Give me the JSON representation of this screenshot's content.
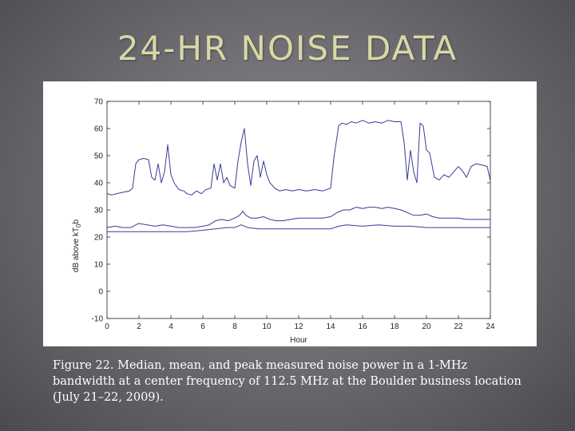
{
  "slide": {
    "title": "24-HR NOISE DATA",
    "caption": "Figure 22. Median, mean, and peak measured noise power in a 1-MHz bandwidth at a center frequency of 112.5 MHz at the Boulder business location (July 21–22, 2009)."
  },
  "colors": {
    "series_line": "#3a3a9a",
    "axis": "#222222",
    "title": "#d9d7a6"
  },
  "chart_data": {
    "type": "line",
    "xlabel": "Hour",
    "ylabel_main": "dB above kT",
    "ylabel_sub": "0",
    "ylabel_end": "b",
    "xlim": [
      0,
      24
    ],
    "ylim": [
      -10,
      70
    ],
    "xticks": [
      0,
      2,
      4,
      6,
      8,
      10,
      12,
      14,
      16,
      18,
      20,
      22,
      24
    ],
    "yticks": [
      -10,
      0,
      10,
      20,
      30,
      40,
      50,
      60,
      70
    ],
    "grid": false,
    "series": [
      {
        "role": "peak",
        "points": [
          [
            0,
            36
          ],
          [
            0.3,
            35.5
          ],
          [
            0.6,
            36
          ],
          [
            1,
            36.5
          ],
          [
            1.4,
            37
          ],
          [
            1.6,
            38
          ],
          [
            1.8,
            47
          ],
          [
            2,
            48.5
          ],
          [
            2.3,
            49
          ],
          [
            2.6,
            48.5
          ],
          [
            2.8,
            42
          ],
          [
            3,
            41
          ],
          [
            3.2,
            47
          ],
          [
            3.4,
            40
          ],
          [
            3.6,
            44
          ],
          [
            3.8,
            54
          ],
          [
            4,
            43
          ],
          [
            4.2,
            40
          ],
          [
            4.5,
            37.5
          ],
          [
            4.8,
            37
          ],
          [
            5,
            36
          ],
          [
            5.3,
            35.5
          ],
          [
            5.6,
            37
          ],
          [
            5.9,
            36
          ],
          [
            6.2,
            37.5
          ],
          [
            6.5,
            38
          ],
          [
            6.7,
            47
          ],
          [
            6.9,
            41
          ],
          [
            7.1,
            47
          ],
          [
            7.3,
            40
          ],
          [
            7.5,
            42
          ],
          [
            7.7,
            39
          ],
          [
            8,
            38
          ],
          [
            8.2,
            48
          ],
          [
            8.4,
            55
          ],
          [
            8.6,
            60
          ],
          [
            8.8,
            47
          ],
          [
            9,
            39
          ],
          [
            9.2,
            48
          ],
          [
            9.4,
            50
          ],
          [
            9.6,
            42
          ],
          [
            9.8,
            48
          ],
          [
            10,
            43
          ],
          [
            10.2,
            40
          ],
          [
            10.5,
            38
          ],
          [
            10.8,
            37
          ],
          [
            11.2,
            37.5
          ],
          [
            11.6,
            37
          ],
          [
            12,
            37.5
          ],
          [
            12.5,
            37
          ],
          [
            13,
            37.5
          ],
          [
            13.5,
            37
          ],
          [
            14,
            38
          ],
          [
            14.2,
            49
          ],
          [
            14.5,
            61
          ],
          [
            14.7,
            62
          ],
          [
            15,
            61.5
          ],
          [
            15.3,
            62.5
          ],
          [
            15.6,
            62
          ],
          [
            16,
            63
          ],
          [
            16.4,
            62
          ],
          [
            16.8,
            62.5
          ],
          [
            17.2,
            62
          ],
          [
            17.6,
            63
          ],
          [
            18,
            62.5
          ],
          [
            18.4,
            62.5
          ],
          [
            18.6,
            55
          ],
          [
            18.8,
            41
          ],
          [
            19,
            52
          ],
          [
            19.2,
            44
          ],
          [
            19.4,
            40
          ],
          [
            19.6,
            62
          ],
          [
            19.8,
            61
          ],
          [
            20,
            52
          ],
          [
            20.2,
            51
          ],
          [
            20.5,
            42
          ],
          [
            20.8,
            41
          ],
          [
            21.1,
            43
          ],
          [
            21.4,
            42
          ],
          [
            21.7,
            44
          ],
          [
            22,
            46
          ],
          [
            22.3,
            44
          ],
          [
            22.5,
            42
          ],
          [
            22.8,
            46
          ],
          [
            23.1,
            47
          ],
          [
            23.5,
            46.5
          ],
          [
            23.8,
            46
          ],
          [
            24,
            41
          ]
        ]
      },
      {
        "role": "mean",
        "points": [
          [
            0,
            23.5
          ],
          [
            0.5,
            24
          ],
          [
            1,
            23.5
          ],
          [
            1.5,
            23.5
          ],
          [
            1.8,
            24.5
          ],
          [
            2,
            25
          ],
          [
            2.5,
            24.5
          ],
          [
            3,
            24
          ],
          [
            3.5,
            24.5
          ],
          [
            4,
            24
          ],
          [
            4.5,
            23.5
          ],
          [
            5,
            23.5
          ],
          [
            5.5,
            23.5
          ],
          [
            6,
            24
          ],
          [
            6.4,
            24.5
          ],
          [
            6.8,
            26
          ],
          [
            7.2,
            26.5
          ],
          [
            7.6,
            26
          ],
          [
            8,
            27
          ],
          [
            8.3,
            28
          ],
          [
            8.5,
            29.5
          ],
          [
            8.7,
            28
          ],
          [
            9,
            27
          ],
          [
            9.4,
            27
          ],
          [
            9.8,
            27.5
          ],
          [
            10.2,
            26.5
          ],
          [
            10.6,
            26
          ],
          [
            11,
            26
          ],
          [
            11.5,
            26.5
          ],
          [
            12,
            27
          ],
          [
            12.5,
            27
          ],
          [
            13,
            27
          ],
          [
            13.5,
            27
          ],
          [
            14,
            27.5
          ],
          [
            14.4,
            29
          ],
          [
            14.8,
            30
          ],
          [
            15.2,
            30
          ],
          [
            15.6,
            31
          ],
          [
            16,
            30.5
          ],
          [
            16.4,
            31
          ],
          [
            16.8,
            31
          ],
          [
            17.2,
            30.5
          ],
          [
            17.6,
            31
          ],
          [
            18,
            30.5
          ],
          [
            18.4,
            30
          ],
          [
            18.8,
            29
          ],
          [
            19.2,
            28
          ],
          [
            19.6,
            28
          ],
          [
            20,
            28.5
          ],
          [
            20.4,
            27.5
          ],
          [
            20.8,
            27
          ],
          [
            21.2,
            27
          ],
          [
            21.6,
            27
          ],
          [
            22,
            27
          ],
          [
            22.5,
            26.5
          ],
          [
            23,
            26.5
          ],
          [
            23.5,
            26.5
          ],
          [
            24,
            26.5
          ]
        ]
      },
      {
        "role": "median",
        "points": [
          [
            0,
            22
          ],
          [
            1,
            22
          ],
          [
            2,
            22
          ],
          [
            3,
            22
          ],
          [
            4,
            22
          ],
          [
            5,
            22
          ],
          [
            6,
            22.5
          ],
          [
            6.8,
            23
          ],
          [
            7.5,
            23.5
          ],
          [
            8,
            23.5
          ],
          [
            8.4,
            24.5
          ],
          [
            8.8,
            23.5
          ],
          [
            9.5,
            23
          ],
          [
            10,
            23
          ],
          [
            11,
            23
          ],
          [
            12,
            23
          ],
          [
            13,
            23
          ],
          [
            14,
            23
          ],
          [
            14.5,
            24
          ],
          [
            15,
            24.5
          ],
          [
            16,
            24
          ],
          [
            17,
            24.5
          ],
          [
            18,
            24
          ],
          [
            19,
            24
          ],
          [
            20,
            23.5
          ],
          [
            21,
            23.5
          ],
          [
            22,
            23.5
          ],
          [
            23,
            23.5
          ],
          [
            24,
            23.5
          ]
        ]
      }
    ]
  }
}
